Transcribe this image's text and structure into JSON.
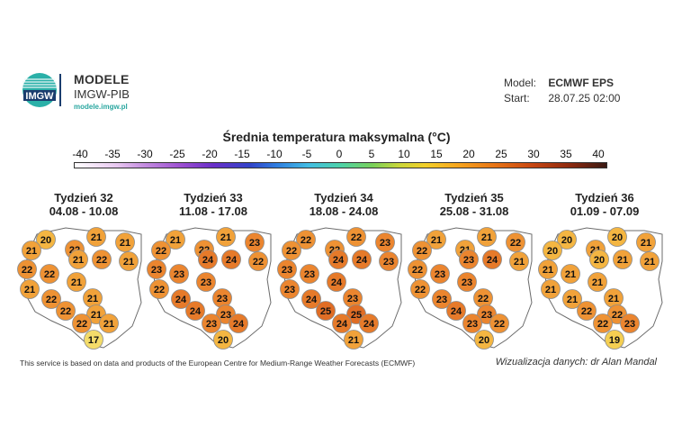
{
  "header": {
    "brand_title": "MODELE",
    "brand_subtitle": "IMGW-PIB",
    "brand_url": "modele.imgw.pl",
    "logo_text": "IMGW",
    "model_label": "Model:",
    "model_value": "ECMWF EPS",
    "start_label": "Start:",
    "start_value": "28.07.25 02:00"
  },
  "scale": {
    "title": "Średnia temperatura maksymalna (°C)",
    "ticks": [
      "-40",
      "-35",
      "-30",
      "-25",
      "-20",
      "-15",
      "-10",
      "-5",
      "0",
      "5",
      "10",
      "15",
      "20",
      "25",
      "30",
      "35",
      "40"
    ]
  },
  "weeks": [
    {
      "name": "Tydzień 32",
      "range": "04.08 - 10.08",
      "values": [
        20,
        21,
        21,
        22,
        21,
        21,
        22,
        22,
        21,
        22,
        21,
        22,
        21,
        21,
        22,
        21,
        22,
        21,
        17
      ]
    },
    {
      "name": "Tydzień 33",
      "range": "11.08 - 17.08",
      "values": [
        21,
        21,
        22,
        22,
        23,
        22,
        23,
        23,
        24,
        24,
        22,
        24,
        23,
        23,
        24,
        23,
        23,
        24,
        20
      ]
    },
    {
      "name": "Tydzień 34",
      "range": "18.08 - 24.08",
      "values": [
        22,
        22,
        22,
        22,
        23,
        23,
        23,
        23,
        24,
        24,
        23,
        24,
        24,
        23,
        25,
        25,
        24,
        24,
        21
      ]
    },
    {
      "name": "Tydzień 35",
      "range": "25.08 - 31.08",
      "values": [
        21,
        21,
        22,
        21,
        22,
        21,
        22,
        23,
        23,
        24,
        22,
        23,
        23,
        22,
        24,
        23,
        23,
        22,
        20
      ]
    },
    {
      "name": "Tydzień 36",
      "range": "01.09 - 07.09",
      "values": [
        20,
        20,
        20,
        21,
        21,
        21,
        21,
        21,
        20,
        21,
        21,
        21,
        21,
        21,
        22,
        22,
        22,
        23,
        19
      ]
    }
  ],
  "colors": {
    "t17": "#f4dc6a",
    "t19": "#f5cf52",
    "t20": "#f4b642",
    "t21": "#f1a23a",
    "t22": "#ee9234",
    "t23": "#eb852f",
    "t24": "#e67a2a",
    "t25": "#e06d25",
    "outline": "#6b6b6b"
  },
  "footer": {
    "source_text": "This service is based on data and products of the European Centre for Medium-Range Weather Forecasts (ECMWF)",
    "credit_text": "Wizualizacja danych: dr Alan Mandal"
  }
}
